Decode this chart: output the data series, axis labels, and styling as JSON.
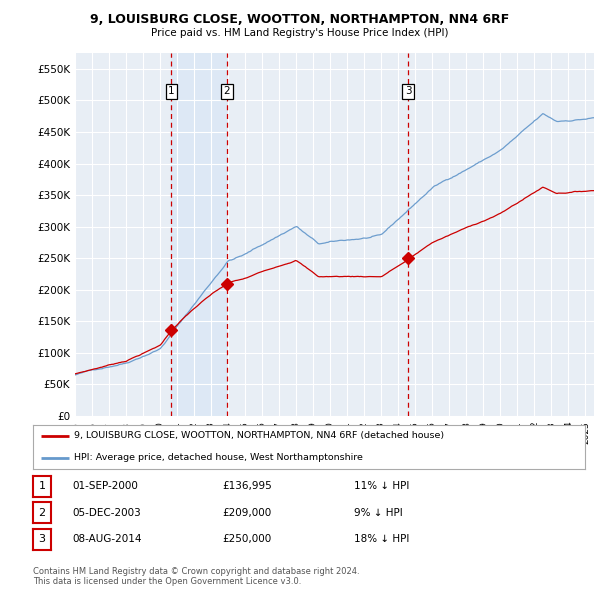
{
  "title": "9, LOUISBURG CLOSE, WOOTTON, NORTHAMPTON, NN4 6RF",
  "subtitle": "Price paid vs. HM Land Registry's House Price Index (HPI)",
  "ylim": [
    0,
    575000
  ],
  "yticks": [
    0,
    50000,
    100000,
    150000,
    200000,
    250000,
    300000,
    350000,
    400000,
    450000,
    500000,
    550000
  ],
  "ytick_labels": [
    "£0",
    "£50K",
    "£100K",
    "£150K",
    "£200K",
    "£250K",
    "£300K",
    "£350K",
    "£400K",
    "£450K",
    "£500K",
    "£550K"
  ],
  "background_color": "#ffffff",
  "plot_bg_color": "#e8eef5",
  "grid_color": "#ffffff",
  "red_line_color": "#cc0000",
  "blue_line_color": "#6699cc",
  "vline_color": "#cc0000",
  "highlight_color": "#dce8f5",
  "sale_points": [
    {
      "date_num": 2000.67,
      "price": 136995,
      "label": "1"
    },
    {
      "date_num": 2003.92,
      "price": 209000,
      "label": "2"
    },
    {
      "date_num": 2014.59,
      "price": 250000,
      "label": "3"
    }
  ],
  "vline_dates": [
    2000.67,
    2003.92,
    2014.59
  ],
  "legend_entries": [
    "9, LOUISBURG CLOSE, WOOTTON, NORTHAMPTON, NN4 6RF (detached house)",
    "HPI: Average price, detached house, West Northamptonshire"
  ],
  "table_rows": [
    {
      "num": "1",
      "date": "01-SEP-2000",
      "price": "£136,995",
      "hpi": "11% ↓ HPI"
    },
    {
      "num": "2",
      "date": "05-DEC-2003",
      "price": "£209,000",
      "hpi": "9% ↓ HPI"
    },
    {
      "num": "3",
      "date": "08-AUG-2014",
      "price": "£250,000",
      "hpi": "18% ↓ HPI"
    }
  ],
  "footer": "Contains HM Land Registry data © Crown copyright and database right 2024.\nThis data is licensed under the Open Government Licence v3.0."
}
